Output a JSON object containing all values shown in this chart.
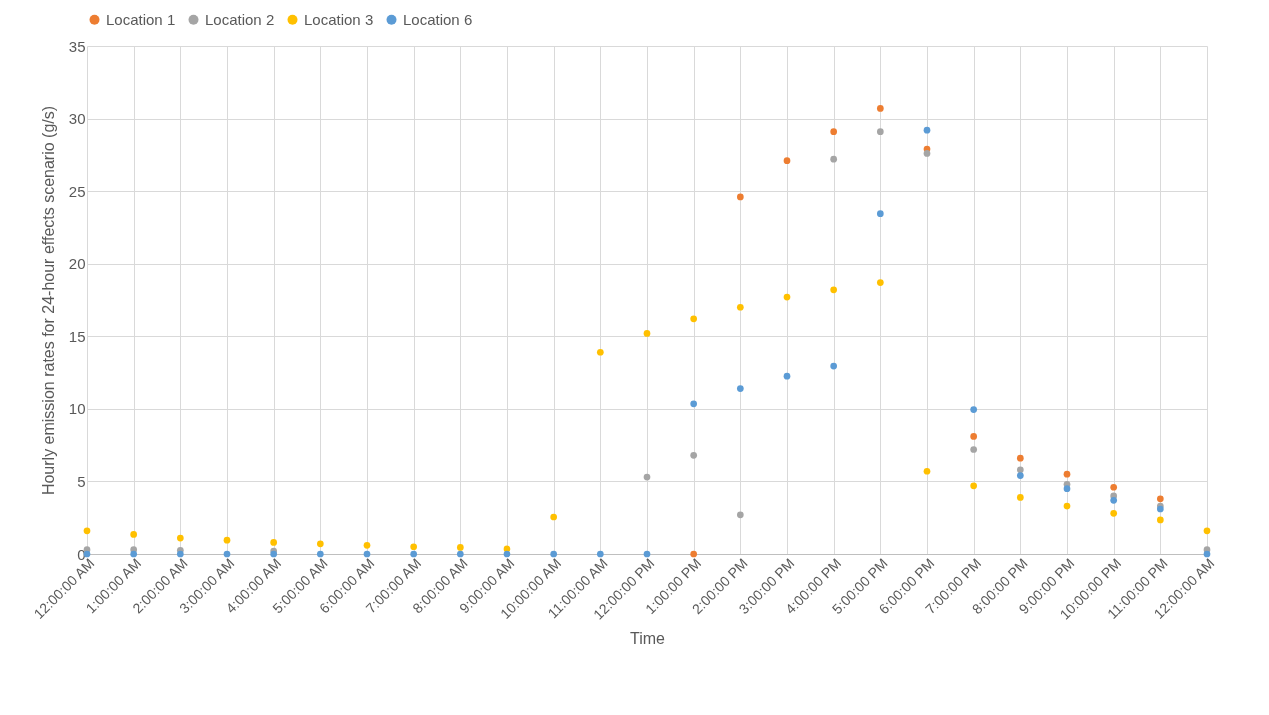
{
  "chart_data": {
    "type": "scatter",
    "xlabel": "Time",
    "ylabel": "Hourly emission rates for 24-hour effects scenario (g/s)",
    "categories": [
      "12:00:00 AM",
      "1:00:00 AM",
      "2:00:00 AM",
      "3:00:00 AM",
      "4:00:00 AM",
      "5:00:00 AM",
      "6:00:00 AM",
      "7:00:00 AM",
      "8:00:00 AM",
      "9:00:00 AM",
      "10:00:00 AM",
      "11:00:00 AM",
      "12:00:00 PM",
      "1:00:00 PM",
      "2:00:00 PM",
      "3:00:00 PM",
      "4:00:00 PM",
      "5:00:00 PM",
      "6:00:00 PM",
      "7:00:00 PM",
      "8:00:00 PM",
      "9:00:00 PM",
      "10:00:00 PM",
      "11:00:00 PM",
      "12:00:00 AM"
    ],
    "series": [
      {
        "name": "Location 1",
        "color": "#ed7d31",
        "values": [
          null,
          null,
          null,
          null,
          null,
          null,
          null,
          null,
          null,
          null,
          null,
          null,
          null,
          0,
          24.6,
          27.1,
          29.1,
          30.7,
          27.9,
          8.1,
          6.6,
          5.5,
          4.6,
          3.8,
          null
        ]
      },
      {
        "name": "Location 2",
        "color": "#a5a5a5",
        "values": [
          0.3,
          0.3,
          0.25,
          null,
          0.2,
          null,
          null,
          null,
          null,
          null,
          null,
          null,
          5.3,
          6.8,
          2.7,
          null,
          27.2,
          29.1,
          27.6,
          7.2,
          5.8,
          4.8,
          4.0,
          3.3,
          0.3
        ]
      },
      {
        "name": "Location 3",
        "color": "#ffc000",
        "values": [
          1.6,
          1.35,
          1.1,
          0.95,
          0.8,
          0.7,
          0.6,
          0.5,
          0.45,
          0.35,
          2.55,
          13.9,
          15.2,
          16.2,
          17.0,
          17.7,
          18.2,
          18.7,
          5.7,
          4.7,
          3.9,
          3.3,
          2.8,
          2.35,
          1.6
        ]
      },
      {
        "name": "Location 6",
        "color": "#5b9bd5",
        "values": [
          0,
          0,
          0,
          0,
          0,
          0,
          0,
          0,
          0,
          0,
          0,
          0,
          0,
          10.35,
          11.4,
          12.25,
          12.95,
          23.45,
          29.2,
          9.95,
          5.4,
          4.5,
          3.7,
          3.1,
          0
        ]
      }
    ],
    "ylim": [
      0,
      35
    ],
    "yticks": [
      0,
      5,
      10,
      15,
      20,
      25,
      30,
      35
    ],
    "grid": true,
    "legend": "top",
    "marker": "circle"
  }
}
